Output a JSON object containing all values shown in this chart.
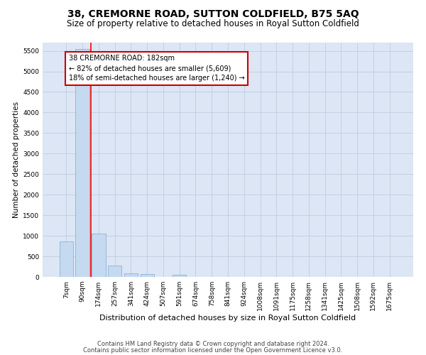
{
  "title": "38, CREMORNE ROAD, SUTTON COLDFIELD, B75 5AQ",
  "subtitle": "Size of property relative to detached houses in Royal Sutton Coldfield",
  "xlabel": "Distribution of detached houses by size in Royal Sutton Coldfield",
  "ylabel": "Number of detached properties",
  "bar_color": "#c5d9f0",
  "bar_edge_color": "#8ab4d4",
  "categories": [
    "7sqm",
    "90sqm",
    "174sqm",
    "257sqm",
    "341sqm",
    "424sqm",
    "507sqm",
    "591sqm",
    "674sqm",
    "758sqm",
    "841sqm",
    "924sqm",
    "1008sqm",
    "1091sqm",
    "1175sqm",
    "1258sqm",
    "1341sqm",
    "1425sqm",
    "1508sqm",
    "1592sqm",
    "1675sqm"
  ],
  "values": [
    870,
    5540,
    1050,
    270,
    80,
    70,
    0,
    55,
    0,
    0,
    0,
    0,
    0,
    0,
    0,
    0,
    0,
    0,
    0,
    0,
    0
  ],
  "ylim": [
    0,
    5700
  ],
  "yticks": [
    0,
    500,
    1000,
    1500,
    2000,
    2500,
    3000,
    3500,
    4000,
    4500,
    5000,
    5500
  ],
  "red_line_x": 2.0,
  "annotation_text_line1": "38 CREMORNE ROAD: 182sqm",
  "annotation_text_line2": "← 82% of detached houses are smaller (5,609)",
  "annotation_text_line3": "18% of semi-detached houses are larger (1,240) →",
  "annotation_box_color": "#ffffff",
  "annotation_box_edge": "#cc0000",
  "footer1": "Contains HM Land Registry data © Crown copyright and database right 2024.",
  "footer2": "Contains public sector information licensed under the Open Government Licence v3.0.",
  "bg_color": "#ffffff",
  "plot_bg_color": "#dce6f5",
  "grid_color": "#b8c8dc",
  "title_fontsize": 10,
  "subtitle_fontsize": 8.5,
  "ylabel_fontsize": 7.5,
  "xlabel_fontsize": 8,
  "tick_fontsize": 6.5,
  "annot_fontsize": 7,
  "footer_fontsize": 6,
  "bar_width": 0.85
}
